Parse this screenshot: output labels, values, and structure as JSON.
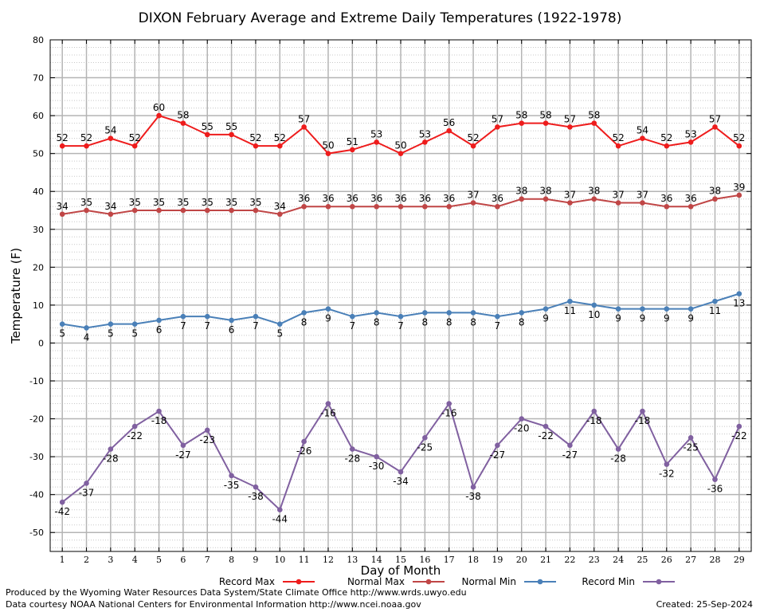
{
  "chart_data": {
    "type": "line",
    "title": "DIXON February Average and Extreme Daily Temperatures (1922-1978)",
    "xlabel": "Day of Month",
    "ylabel": "Temperature (F)",
    "x": [
      1,
      2,
      3,
      4,
      5,
      6,
      7,
      8,
      9,
      10,
      11,
      12,
      13,
      14,
      15,
      16,
      17,
      18,
      19,
      20,
      21,
      22,
      23,
      24,
      25,
      26,
      27,
      28,
      29
    ],
    "ylim": [
      -55,
      80
    ],
    "yticks": [
      80,
      70,
      60,
      50,
      40,
      30,
      20,
      10,
      0,
      -10,
      -20,
      -30,
      -40,
      -50
    ],
    "grid": true,
    "legend_position": "bottom",
    "series": [
      {
        "name": "Record Max",
        "color": "#ee1c1c",
        "values": [
          52,
          52,
          54,
          52,
          60,
          58,
          55,
          55,
          52,
          52,
          57,
          50,
          51,
          53,
          50,
          53,
          56,
          52,
          57,
          58,
          58,
          57,
          58,
          52,
          54,
          52,
          53,
          57,
          52
        ]
      },
      {
        "name": "Normal Max",
        "color": "#c04646",
        "values": [
          34,
          35,
          34,
          35,
          35,
          35,
          35,
          35,
          35,
          34,
          36,
          36,
          36,
          36,
          36,
          36,
          36,
          37,
          36,
          38,
          38,
          37,
          38,
          37,
          37,
          36,
          36,
          38,
          39
        ]
      },
      {
        "name": "Normal Min",
        "color": "#4a80b8",
        "values": [
          5,
          4,
          5,
          5,
          6,
          7,
          7,
          6,
          7,
          5,
          8,
          9,
          7,
          8,
          7,
          8,
          8,
          8,
          7,
          8,
          9,
          11,
          10,
          9,
          9,
          9,
          9,
          11,
          13
        ]
      },
      {
        "name": "Record Min",
        "color": "#8060a0",
        "values": [
          -42,
          -37,
          -28,
          -22,
          -18,
          -27,
          -23,
          -35,
          -38,
          -44,
          -26,
          -16,
          -28,
          -30,
          -34,
          -25,
          -16,
          -38,
          -27,
          -20,
          -22,
          -27,
          -18,
          -28,
          -18,
          -32,
          -25,
          -36,
          -22
        ]
      }
    ]
  },
  "footer": {
    "credit_line1": "Produced by the Wyoming Water Resources Data System/State Climate Office http://www.wrds.uwyo.edu",
    "credit_line2": "Data courtesy NOAA National Centers for Environmental Information http://www.ncei.noaa.gov",
    "created": "Created:  25-Sep-2024"
  }
}
